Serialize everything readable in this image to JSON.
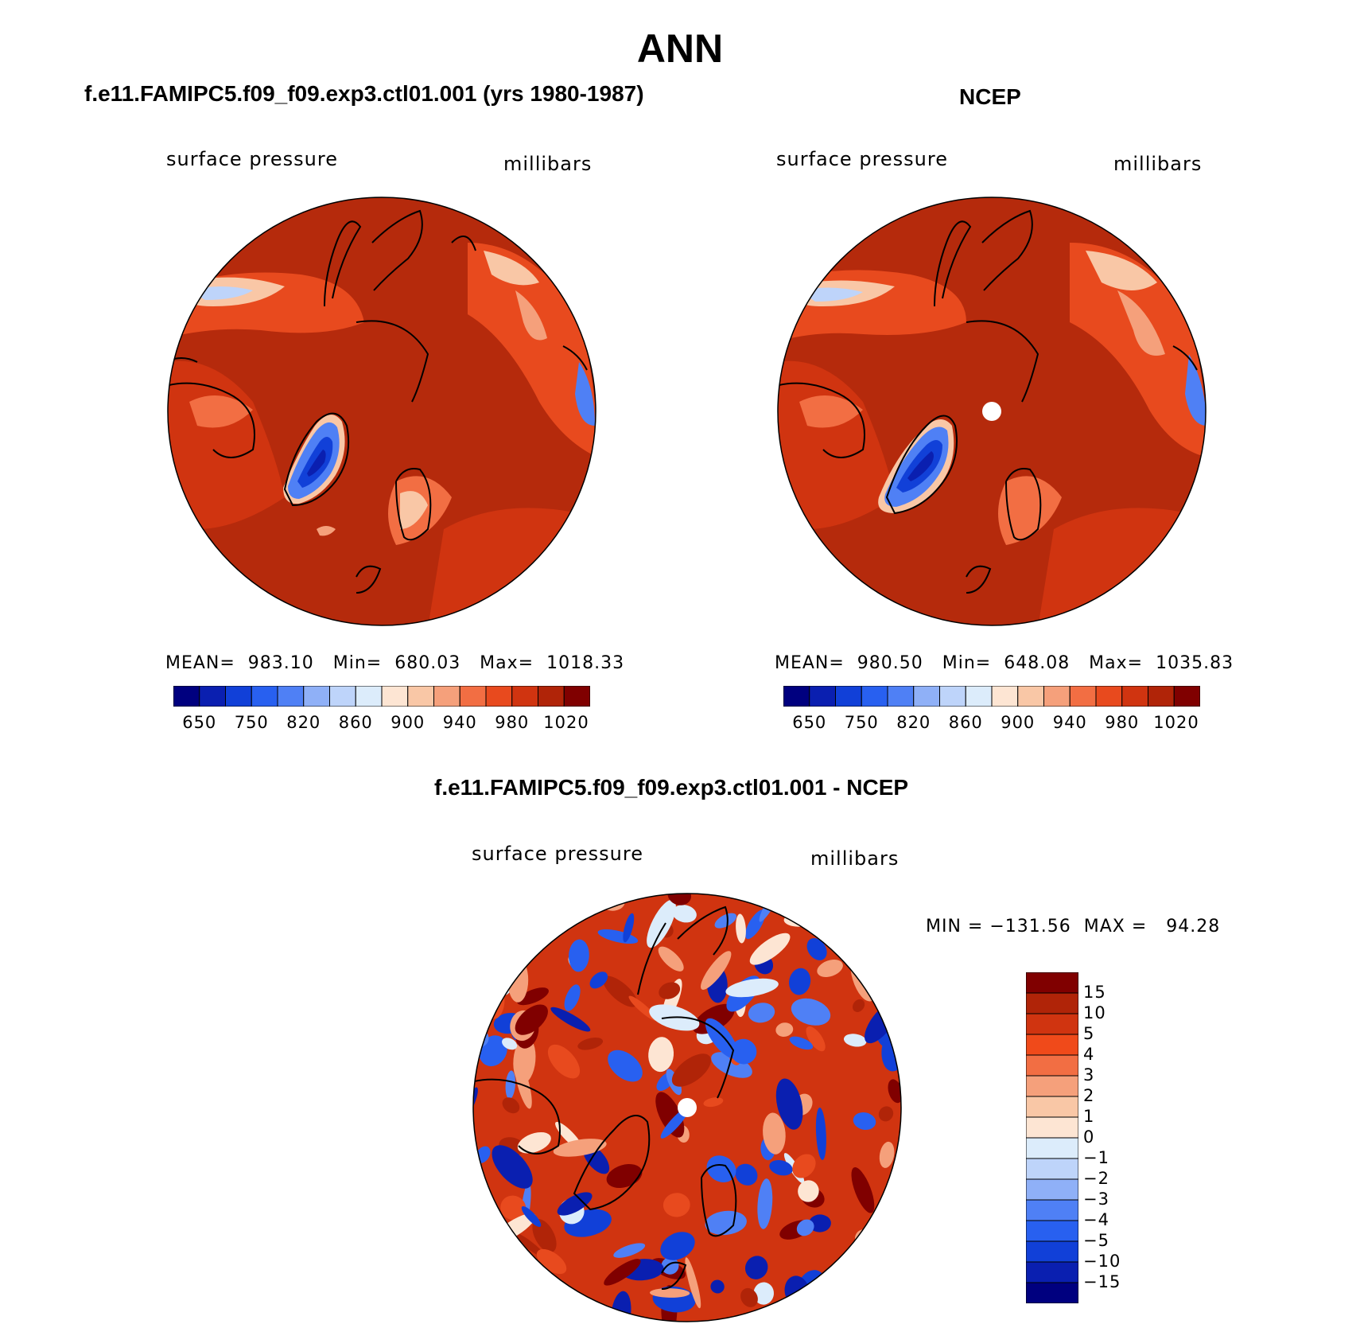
{
  "title": "ANN",
  "panels": [
    {
      "id": "model",
      "subtitle": "f.e11.FAMIPC5.f09_f09.exp3.ctl01.001 (yrs 1980-1987)",
      "variable": "surface pressure",
      "units": "millibars",
      "stats": {
        "mean": "983.10",
        "min": "680.03",
        "max": "1018.33"
      },
      "stats_text": "MEAN=  983.10   Min=  680.03   Max=  1018.33",
      "colorbar_ticks": [
        "650",
        "750",
        "820",
        "860",
        "900",
        "940",
        "980",
        "1020"
      ],
      "pole_marker": false
    },
    {
      "id": "obs",
      "subtitle": "NCEP",
      "variable": "surface pressure",
      "units": "millibars",
      "stats": {
        "mean": "980.50",
        "min": "648.08",
        "max": "1035.83"
      },
      "stats_text": "MEAN=  980.50   Min=  648.08   Max=  1035.83",
      "colorbar_ticks": [
        "650",
        "750",
        "820",
        "860",
        "900",
        "940",
        "980",
        "1020"
      ],
      "pole_marker": true
    }
  ],
  "difference": {
    "subtitle": "f.e11.FAMIPC5.f09_f09.exp3.ctl01.001 - NCEP",
    "variable": "surface pressure",
    "units": "millibars",
    "stats": {
      "min": "−131.56",
      "max": "94.28"
    },
    "stats_text": "MIN = −131.56  MAX =   94.28",
    "colorbar_ticks": [
      "15",
      "10",
      "5",
      "4",
      "3",
      "2",
      "1",
      "0",
      "−1",
      "−2",
      "−3",
      "−4",
      "−5",
      "−10",
      "−15"
    ]
  },
  "colors": {
    "field_palette": [
      "#00007f",
      "#0a1fb0",
      "#1140d8",
      "#2860f0",
      "#4f80f5",
      "#8fb0f7",
      "#bed4fa",
      "#dcecfb",
      "#fde5d3",
      "#f9c7a6",
      "#f5a07b",
      "#f26e43",
      "#e84a1e",
      "#d03410",
      "#b02408",
      "#800000"
    ],
    "diff_palette": [
      "#800000",
      "#b02408",
      "#d03410",
      "#f04a1a",
      "#f26e43",
      "#f5a07b",
      "#f9c7a6",
      "#fde5d3",
      "#dcecfb",
      "#bed4fa",
      "#8fb0f7",
      "#4f80f5",
      "#2860f0",
      "#1140d8",
      "#0a1fb0",
      "#00007f"
    ],
    "map_background": "#b52a0c",
    "coastline": "#000000"
  }
}
